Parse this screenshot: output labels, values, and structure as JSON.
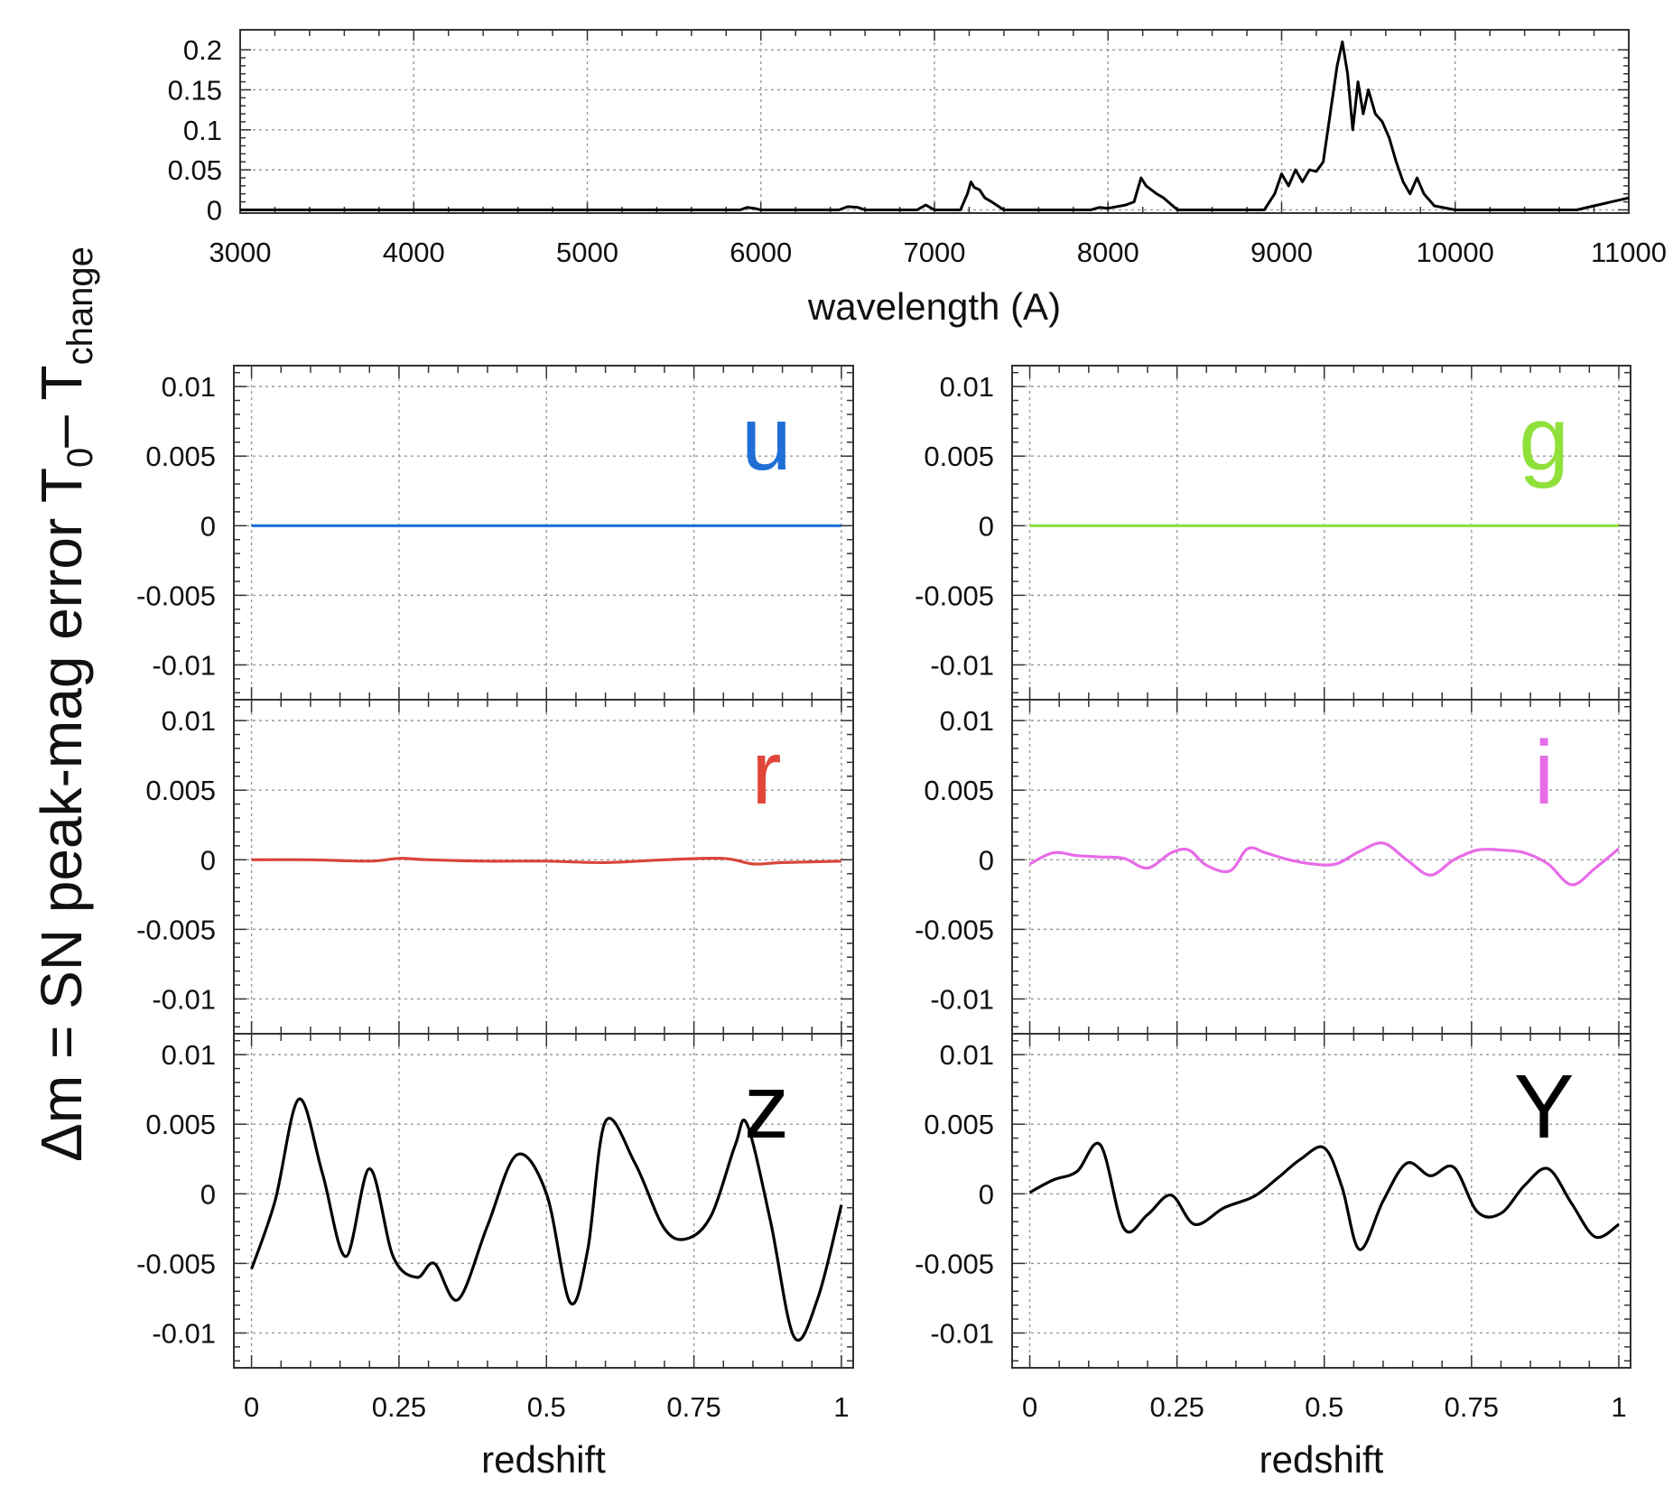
{
  "figure": {
    "ylabel_html": [
      "Δm = SN peak-mag  error   T",
      "0",
      "– T",
      "change"
    ]
  },
  "chart_data": [
    {
      "id": "spectrum",
      "type": "line",
      "title": "",
      "xlabel": "wavelength (A)",
      "ylabel": "T0 – Tchange",
      "xlim": [
        3000,
        11000
      ],
      "ylim": [
        0,
        0.21
      ],
      "xticks": [
        3000,
        4000,
        5000,
        6000,
        7000,
        8000,
        9000,
        10000,
        11000
      ],
      "xtick_labels": [
        "3000",
        "4000",
        "5000",
        "6000",
        "7000",
        "8000",
        "9000",
        "10000",
        "11000"
      ],
      "yticks": [
        0,
        0.05,
        0.1,
        0.15,
        0.2
      ],
      "ytick_labels": [
        "0",
        "0.05",
        "0.1",
        "0.15",
        "0.2"
      ],
      "grid": true,
      "series": [
        {
          "color": "#000000",
          "x": [
            3000,
            5880,
            5920,
            5960,
            6000,
            6450,
            6500,
            6560,
            6600,
            6900,
            6950,
            7000,
            7150,
            7190,
            7210,
            7230,
            7260,
            7290,
            7330,
            7400,
            7900,
            7950,
            8000,
            8100,
            8150,
            8190,
            8220,
            8250,
            8280,
            8320,
            8400,
            8900,
            8960,
            9000,
            9040,
            9080,
            9120,
            9160,
            9200,
            9240,
            9280,
            9320,
            9350,
            9380,
            9410,
            9440,
            9470,
            9500,
            9540,
            9580,
            9620,
            9660,
            9700,
            9740,
            9780,
            9820,
            9880,
            10000,
            10700,
            10800,
            10900,
            11000
          ],
          "y": [
            0,
            0,
            0.003,
            0.002,
            0,
            0,
            0.004,
            0.003,
            0,
            0,
            0.006,
            0,
            0,
            0.02,
            0.035,
            0.028,
            0.025,
            0.015,
            0.01,
            0,
            0,
            0.003,
            0.002,
            0.006,
            0.01,
            0.04,
            0.03,
            0.025,
            0.02,
            0.015,
            0,
            0,
            0.02,
            0.045,
            0.03,
            0.05,
            0.035,
            0.05,
            0.048,
            0.06,
            0.12,
            0.18,
            0.21,
            0.17,
            0.1,
            0.16,
            0.12,
            0.15,
            0.12,
            0.11,
            0.09,
            0.06,
            0.035,
            0.02,
            0.04,
            0.02,
            0.005,
            0,
            0,
            0.005,
            0.01,
            0.015
          ]
        }
      ]
    },
    {
      "id": "band-u",
      "type": "line",
      "label": "u",
      "label_color": "#1f6fd6",
      "xlim": [
        -0.03,
        1.02
      ],
      "ylim": [
        -0.0125,
        0.0115
      ],
      "xticks": [
        0,
        0.25,
        0.5,
        0.75,
        1
      ],
      "yticks": [
        -0.01,
        -0.005,
        0,
        0.005,
        0.01
      ],
      "ytick_labels": [
        "-0.01",
        "-0.005",
        "0",
        "0.005",
        "0.01"
      ],
      "grid": true,
      "series": [
        {
          "color": "#1f6fd6",
          "x": [
            0,
            1
          ],
          "y": [
            0,
            0
          ]
        }
      ]
    },
    {
      "id": "band-g",
      "type": "line",
      "label": "g",
      "label_color": "#8fe03a",
      "xlim": [
        -0.03,
        1.02
      ],
      "ylim": [
        -0.0125,
        0.0115
      ],
      "xticks": [
        0,
        0.25,
        0.5,
        0.75,
        1
      ],
      "yticks": [
        -0.01,
        -0.005,
        0,
        0.005,
        0.01
      ],
      "ytick_labels": [
        "-0.01",
        "-0.005",
        "0",
        "0.005",
        "0.01"
      ],
      "grid": true,
      "series": [
        {
          "color": "#8fe03a",
          "x": [
            0,
            1
          ],
          "y": [
            0,
            0
          ]
        }
      ]
    },
    {
      "id": "band-r",
      "type": "line",
      "label": "r",
      "label_color": "#e0463a",
      "xlim": [
        -0.03,
        1.02
      ],
      "ylim": [
        -0.0125,
        0.0115
      ],
      "xticks": [
        0,
        0.25,
        0.5,
        0.75,
        1
      ],
      "yticks": [
        -0.01,
        -0.005,
        0,
        0.005,
        0.01
      ],
      "ytick_labels": [
        "-0.01",
        "-0.005",
        "0",
        "0.005",
        "0.01"
      ],
      "grid": true,
      "series": [
        {
          "color": "#d9453a",
          "x": [
            0,
            0.1,
            0.2,
            0.25,
            0.3,
            0.4,
            0.5,
            0.6,
            0.7,
            0.8,
            0.85,
            0.9,
            1
          ],
          "y": [
            0,
            0,
            -0.0001,
            0.0001,
            0,
            -0.0001,
            -0.0001,
            -0.0002,
            0,
            0.0001,
            -0.0003,
            -0.0002,
            -0.0001
          ]
        }
      ]
    },
    {
      "id": "band-i",
      "type": "line",
      "label": "i",
      "label_color": "#e86be8",
      "xlim": [
        -0.03,
        1.02
      ],
      "ylim": [
        -0.0125,
        0.0115
      ],
      "xticks": [
        0,
        0.25,
        0.5,
        0.75,
        1
      ],
      "yticks": [
        -0.01,
        -0.005,
        0,
        0.005,
        0.01
      ],
      "ytick_labels": [
        "-0.01",
        "-0.005",
        "0",
        "0.005",
        "0.01"
      ],
      "grid": true,
      "series": [
        {
          "color": "#e86be8",
          "x": [
            0,
            0.04,
            0.08,
            0.12,
            0.16,
            0.2,
            0.24,
            0.27,
            0.3,
            0.34,
            0.37,
            0.4,
            0.44,
            0.48,
            0.52,
            0.56,
            0.6,
            0.64,
            0.68,
            0.72,
            0.76,
            0.8,
            0.84,
            0.88,
            0.92,
            0.96,
            1
          ],
          "y": [
            -0.0003,
            0.0005,
            0.0003,
            0.0002,
            0.0001,
            -0.0006,
            0.0005,
            0.0007,
            -0.0004,
            -0.0008,
            0.0008,
            0.0005,
            0,
            -0.0003,
            -0.0003,
            0.0006,
            0.0012,
            0,
            -0.0011,
            0,
            0.0007,
            0.0007,
            0.0005,
            -0.0003,
            -0.0018,
            -0.0006,
            0.0008
          ]
        }
      ]
    },
    {
      "id": "band-z",
      "type": "line",
      "label": "z",
      "label_color": "#000000",
      "xlabel": "redshift",
      "xlim": [
        -0.03,
        1.02
      ],
      "ylim": [
        -0.0125,
        0.0115
      ],
      "xticks": [
        0,
        0.25,
        0.5,
        0.75,
        1
      ],
      "xtick_labels": [
        "0",
        "0.25",
        "0.5",
        "0.75",
        "1"
      ],
      "yticks": [
        -0.01,
        -0.005,
        0,
        0.005,
        0.01
      ],
      "ytick_labels": [
        "-0.01",
        "-0.005",
        "0",
        "0.005",
        "0.01"
      ],
      "grid": true,
      "series": [
        {
          "color": "#000000",
          "x": [
            0,
            0.04,
            0.08,
            0.12,
            0.16,
            0.2,
            0.24,
            0.28,
            0.31,
            0.35,
            0.4,
            0.45,
            0.5,
            0.54,
            0.57,
            0.6,
            0.65,
            0.7,
            0.74,
            0.78,
            0.82,
            0.84,
            0.88,
            0.92,
            0.96,
            1
          ],
          "y": [
            -0.0054,
            -0.0005,
            0.0068,
            0.0015,
            -0.0045,
            0.0018,
            -0.0045,
            -0.006,
            -0.005,
            -0.0076,
            -0.0023,
            0.0028,
            0,
            -0.0078,
            -0.004,
            0.0052,
            0.0022,
            -0.0025,
            -0.0032,
            -0.0015,
            0.0035,
            0.005,
            -0.002,
            -0.0103,
            -0.0075,
            -0.0008
          ]
        }
      ]
    },
    {
      "id": "band-Y",
      "type": "line",
      "label": "Y",
      "label_color": "#000000",
      "xlabel": "redshift",
      "xlim": [
        -0.03,
        1.02
      ],
      "ylim": [
        -0.0125,
        0.0115
      ],
      "xticks": [
        0,
        0.25,
        0.5,
        0.75,
        1
      ],
      "xtick_labels": [
        "0",
        "0.25",
        "0.5",
        "0.75",
        "1"
      ],
      "yticks": [
        -0.01,
        -0.005,
        0,
        0.005,
        0.01
      ],
      "ytick_labels": [
        "-0.01",
        "-0.005",
        "0",
        "0.005",
        "0.01"
      ],
      "grid": true,
      "series": [
        {
          "color": "#000000",
          "x": [
            0,
            0.04,
            0.08,
            0.12,
            0.16,
            0.2,
            0.24,
            0.28,
            0.33,
            0.38,
            0.42,
            0.46,
            0.5,
            0.53,
            0.56,
            0.6,
            0.64,
            0.68,
            0.72,
            0.76,
            0.8,
            0.84,
            0.88,
            0.92,
            0.96,
            1
          ],
          "y": [
            0.0001,
            0.001,
            0.0016,
            0.0035,
            -0.0025,
            -0.0015,
            -0.0001,
            -0.0022,
            -0.001,
            -0.0002,
            0.0011,
            0.0025,
            0.0033,
            0.0005,
            -0.004,
            -0.0005,
            0.0022,
            0.0013,
            0.0019,
            -0.0013,
            -0.0014,
            0.0006,
            0.0018,
            -0.0007,
            -0.0031,
            -0.0022
          ]
        }
      ]
    }
  ]
}
